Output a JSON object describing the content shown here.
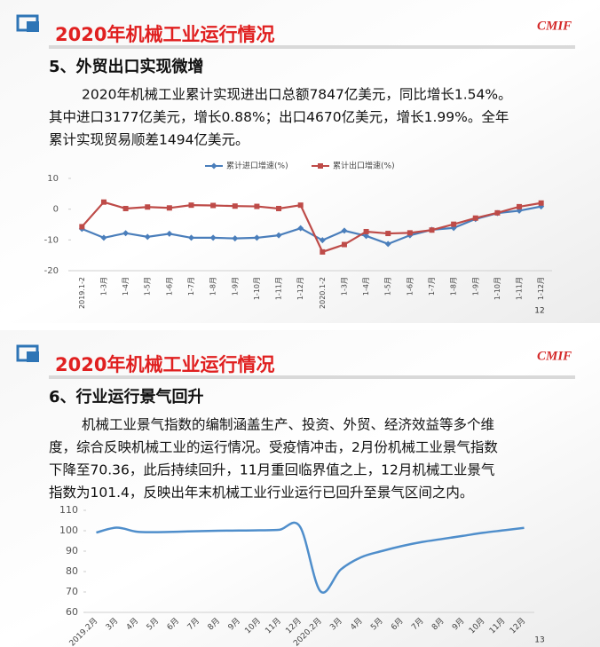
{
  "slides": [
    {
      "header": "2020年机械工业运行情况",
      "logo": "CMIF",
      "heading": "5、外贸出口实现微增",
      "lines": [
        "2020年机械工业累计实现进出口总额7847亿美元，同比增长1.54%。",
        "其中进口3177亿美元，增长0.88%；出口4670亿美元，增长1.99%。全年",
        "累计实现贸易顺差1494亿美元。"
      ],
      "page_number": 12
    },
    {
      "header": "2020年机械工业运行情况",
      "logo": "CMIF",
      "heading": "6、行业运行景气回升",
      "lines": [
        "机械工业景气指数的编制涵盖生产、投资、外贸、经济效益等多个维",
        "度，综合反映机械工业的运行情况。受疫情冲击，2月份机械工业景气指数",
        "下降至70.36，此后持续回升，11月重回临界值之上，12月机械工业景气",
        "指数为101.4，反映出年末机械工业行业运行已回升至景气区间之内。"
      ],
      "page_number": 13
    }
  ],
  "chart_data": [
    {
      "type": "line",
      "legend": "top",
      "grid": false,
      "smooth": false,
      "categories": [
        "2019.1-2",
        "1-3月",
        "1-4月",
        "1-5月",
        "1-6月",
        "1-7月",
        "1-8月",
        "1-9月",
        "1-10月",
        "1-11月",
        "1-12月",
        "2020.1-2",
        "1-3月",
        "1-4月",
        "1-5月",
        "1-6月",
        "1-7月",
        "1-8月",
        "1-9月",
        "1-10月",
        "1-11月",
        "1-12月"
      ],
      "series": [
        {
          "name": "累计进口增速(%)",
          "color": "#4a7ebb",
          "marker": "diamond",
          "values": [
            -6.4,
            -9.3,
            -7.8,
            -9,
            -8,
            -9.3,
            -9.3,
            -9.5,
            -9.3,
            -8.5,
            -6.2,
            -10.1,
            -7,
            -8.7,
            -11.3,
            -8.5,
            -6.7,
            -6.1,
            -3.2,
            -1.3,
            -0.5,
            0.88
          ]
        },
        {
          "name": "累计出口增速(%)",
          "color": "#be4b48",
          "marker": "square",
          "values": [
            -5.7,
            2.3,
            0.2,
            0.7,
            0.4,
            1.3,
            1.2,
            1,
            0.9,
            0.2,
            1.3,
            -13.9,
            -11.5,
            -7.3,
            -7.9,
            -7.7,
            -6.8,
            -4.9,
            -2.9,
            -1.2,
            0.8,
            1.99
          ]
        }
      ],
      "ylim": [
        -20,
        10
      ],
      "yticks": [
        -20,
        -10,
        0,
        10
      ]
    },
    {
      "type": "line",
      "grid": false,
      "smooth": true,
      "categories": [
        "2019.2月",
        "3月",
        "4月",
        "5月",
        "6月",
        "7月",
        "8月",
        "9月",
        "10月",
        "11月",
        "12月",
        "2020.2月",
        "3月",
        "4月",
        "5月",
        "6月",
        "7月",
        "8月",
        "9月",
        "10月",
        "11月",
        "12月"
      ],
      "series": [
        {
          "name": "机械工业景气指数",
          "color": "#4f8ecb",
          "marker": "none",
          "values": [
            99.1,
            101.5,
            99.5,
            99.3,
            99.5,
            99.8,
            100,
            100.1,
            100.2,
            100.5,
            102,
            70.36,
            81,
            87,
            90,
            92.5,
            94.5,
            96,
            97.5,
            99,
            100.2,
            101.4
          ]
        }
      ],
      "ylim": [
        60,
        110
      ],
      "yticks": [
        60,
        70,
        80,
        90,
        100,
        110
      ]
    }
  ]
}
